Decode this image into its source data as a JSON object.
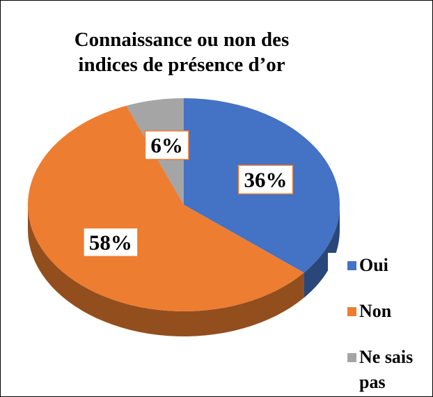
{
  "chart_data": {
    "type": "pie",
    "title": "Connaissance ou non des indices de présence d’or",
    "categories": [
      "Oui",
      "Non",
      "Ne sais pas"
    ],
    "values": [
      36,
      58,
      6
    ],
    "value_labels": [
      "36%",
      "58%",
      "6%"
    ],
    "colors": [
      "#4472c4",
      "#ed7d31",
      "#a5a5a5"
    ],
    "legend": "right"
  }
}
